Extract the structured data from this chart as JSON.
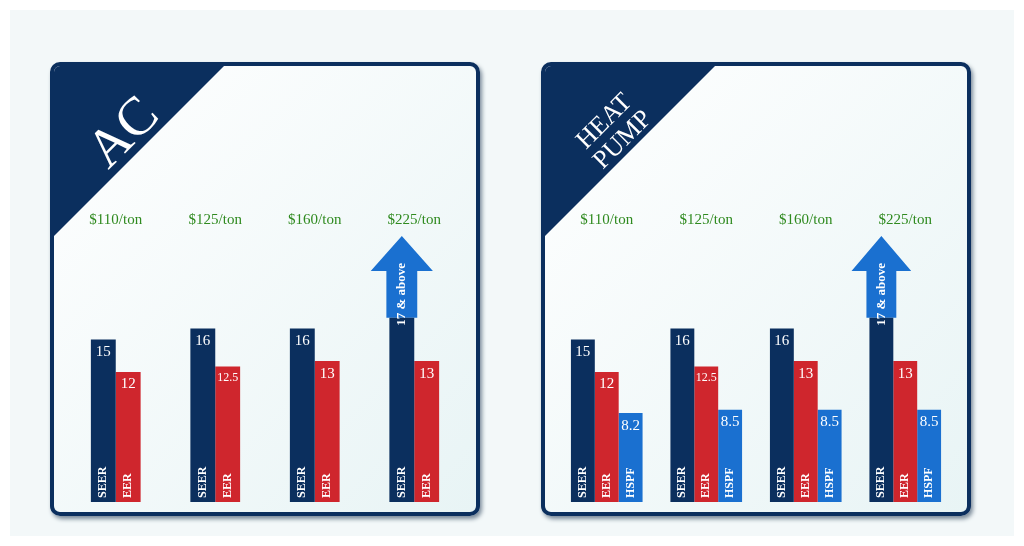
{
  "chart_data": [
    {
      "type": "bar",
      "title": "AC",
      "categories": [
        "$110/ton",
        "$125/ton",
        "$160/ton",
        "$225/ton"
      ],
      "series": [
        {
          "name": "SEER",
          "color": "#0b2f5e",
          "values": [
            15,
            16,
            16,
            17
          ],
          "value_labels": [
            "15",
            "16",
            "16",
            "17 & above"
          ]
        },
        {
          "name": "EER",
          "color": "#cf262d",
          "values": [
            12,
            12.5,
            13,
            13
          ],
          "value_labels": [
            "12",
            "12.5",
            "13",
            "13"
          ]
        }
      ]
    },
    {
      "type": "bar",
      "title": "HEAT PUMP",
      "categories": [
        "$110/ton",
        "$125/ton",
        "$160/ton",
        "$225/ton"
      ],
      "series": [
        {
          "name": "SEER",
          "color": "#0b2f5e",
          "values": [
            15,
            16,
            16,
            17
          ],
          "value_labels": [
            "15",
            "16",
            "16",
            "17 & above"
          ]
        },
        {
          "name": "EER",
          "color": "#cf262d",
          "values": [
            12,
            12.5,
            13,
            13
          ],
          "value_labels": [
            "12",
            "12.5",
            "13",
            "13"
          ]
        },
        {
          "name": "HSPF",
          "color": "#1a70d0",
          "values": [
            8.2,
            8.5,
            8.5,
            8.5
          ],
          "value_labels": [
            "8.2",
            "8.5",
            "8.5",
            "8.5"
          ]
        }
      ]
    }
  ]
}
